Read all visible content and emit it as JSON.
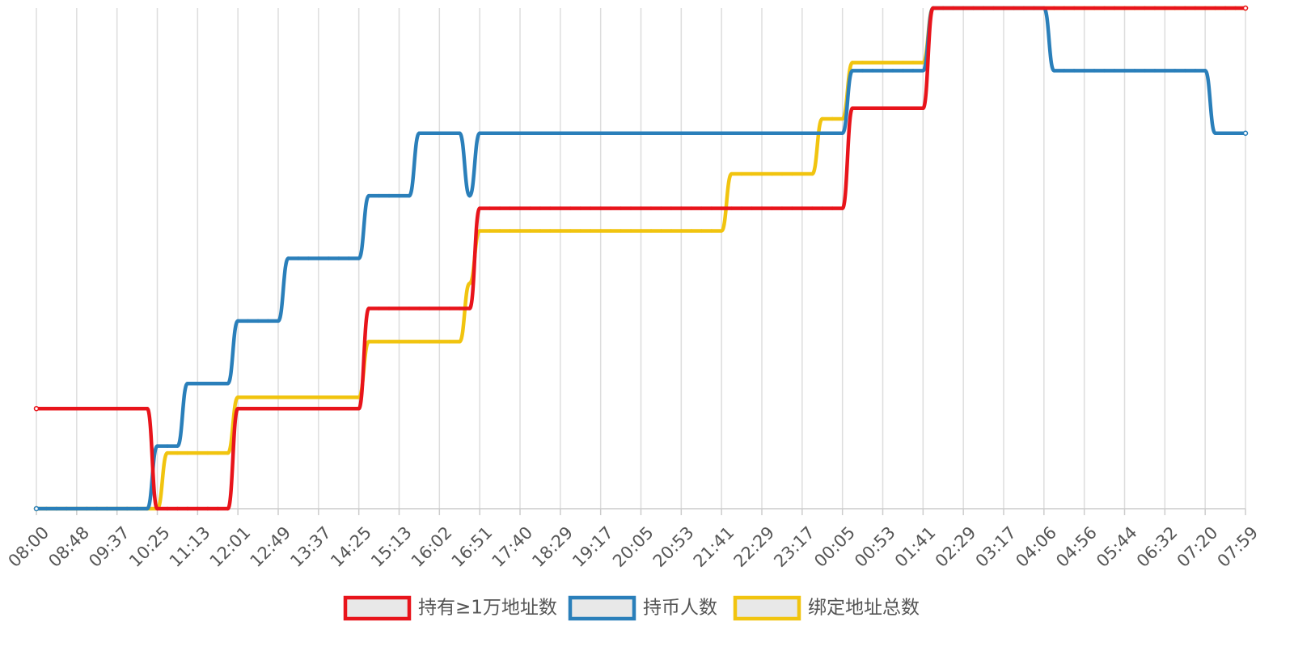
{
  "chart_data": {
    "type": "line",
    "categories": [
      "08:00",
      null,
      null,
      null,
      "08:48",
      null,
      null,
      null,
      "09:37",
      null,
      null,
      null,
      "10:25",
      null,
      null,
      null,
      "11:13",
      null,
      null,
      null,
      "12:01",
      null,
      null,
      null,
      "12:49",
      null,
      null,
      null,
      "13:37",
      null,
      null,
      null,
      "14:25",
      null,
      null,
      null,
      "15:13",
      null,
      null,
      null,
      "16:02",
      null,
      null,
      null,
      "16:51",
      null,
      null,
      null,
      "17:40",
      null,
      null,
      null,
      "18:29",
      null,
      null,
      null,
      "19:17",
      null,
      null,
      null,
      "20:05",
      null,
      null,
      null,
      "20:53",
      null,
      null,
      null,
      "21:41",
      null,
      null,
      null,
      "22:29",
      null,
      null,
      null,
      "23:17",
      null,
      null,
      null,
      "00:05",
      null,
      null,
      null,
      "00:53",
      null,
      null,
      null,
      "01:41",
      null,
      null,
      null,
      "02:29",
      null,
      null,
      null,
      "03:17",
      null,
      null,
      null,
      "04:06",
      null,
      null,
      null,
      "04:56",
      null,
      null,
      null,
      "05:44",
      null,
      null,
      null,
      "06:32",
      null,
      null,
      null,
      "07:20",
      null,
      null,
      null,
      "07:59"
    ],
    "ylim": [
      0,
      8
    ],
    "grid": true,
    "legend": "bottom",
    "series": [
      {
        "name": "持有≥1万地址数",
        "color": "#e8141b",
        "values": [
          1.6,
          1.6,
          1.6,
          1.6,
          1.6,
          1.6,
          1.6,
          1.6,
          1.6,
          1.6,
          1.6,
          1.6,
          0,
          0,
          0,
          0,
          0,
          0,
          0,
          0,
          1.6,
          1.6,
          1.6,
          1.6,
          1.6,
          1.6,
          1.6,
          1.6,
          1.6,
          1.6,
          1.6,
          1.6,
          1.6,
          3.2,
          3.2,
          3.2,
          3.2,
          3.2,
          3.2,
          3.2,
          3.2,
          3.2,
          3.2,
          3.2,
          4.8,
          4.8,
          4.8,
          4.8,
          4.8,
          4.8,
          4.8,
          4.8,
          4.8,
          4.8,
          4.8,
          4.8,
          4.8,
          4.8,
          4.8,
          4.8,
          4.8,
          4.8,
          4.8,
          4.8,
          4.8,
          4.8,
          4.8,
          4.8,
          4.8,
          4.8,
          4.8,
          4.8,
          4.8,
          4.8,
          4.8,
          4.8,
          4.8,
          4.8,
          4.8,
          4.8,
          4.8,
          6.4,
          6.4,
          6.4,
          6.4,
          6.4,
          6.4,
          6.4,
          6.4,
          8,
          8,
          8,
          8,
          8,
          8,
          8,
          8,
          8,
          8,
          8,
          8,
          8,
          8,
          8,
          8,
          8,
          8,
          8,
          8,
          8,
          8,
          8,
          8,
          8,
          8,
          8,
          8,
          8,
          8,
          8,
          8
        ]
      },
      {
        "name": "持币人数",
        "color": "#2a7fba",
        "values": [
          0,
          0,
          0,
          0,
          0,
          0,
          0,
          0,
          0,
          0,
          0,
          0,
          1,
          1,
          1,
          2,
          2,
          2,
          2,
          2,
          3,
          3,
          3,
          3,
          3,
          4,
          4,
          4,
          4,
          4,
          4,
          4,
          4,
          5,
          5,
          5,
          5,
          5,
          6,
          6,
          6,
          6,
          6,
          5,
          6,
          6,
          6,
          6,
          6,
          6,
          6,
          6,
          6,
          6,
          6,
          6,
          6,
          6,
          6,
          6,
          6,
          6,
          6,
          6,
          6,
          6,
          6,
          6,
          6,
          6,
          6,
          6,
          6,
          6,
          6,
          6,
          6,
          6,
          6,
          6,
          6,
          7,
          7,
          7,
          7,
          7,
          7,
          7,
          7,
          8,
          8,
          8,
          8,
          8,
          8,
          8,
          8,
          8,
          8,
          8,
          8,
          7,
          7,
          7,
          7,
          7,
          7,
          7,
          7,
          7,
          7,
          7,
          7,
          7,
          7,
          7,
          7,
          6,
          6,
          6,
          6
        ]
      },
      {
        "name": "绑定地址总数",
        "color": "#f1c40f",
        "values": [
          0,
          0,
          0,
          0,
          0,
          0,
          0,
          0,
          0,
          0,
          0,
          0,
          0,
          0.89,
          0.89,
          0.89,
          0.89,
          0.89,
          0.89,
          0.89,
          1.78,
          1.78,
          1.78,
          1.78,
          1.78,
          1.78,
          1.78,
          1.78,
          1.78,
          1.78,
          1.78,
          1.78,
          1.78,
          2.67,
          2.67,
          2.67,
          2.67,
          2.67,
          2.67,
          2.67,
          2.67,
          2.67,
          2.67,
          3.6,
          4.44,
          4.44,
          4.44,
          4.44,
          4.44,
          4.44,
          4.44,
          4.44,
          4.44,
          4.44,
          4.44,
          4.44,
          4.44,
          4.44,
          4.44,
          4.44,
          4.44,
          4.44,
          4.44,
          4.44,
          4.44,
          4.44,
          4.44,
          4.44,
          4.44,
          5.35,
          5.35,
          5.35,
          5.35,
          5.35,
          5.35,
          5.35,
          5.35,
          5.35,
          6.23,
          6.23,
          6.23,
          7.13,
          7.13,
          7.13,
          7.13,
          7.13,
          7.13,
          7.13,
          7.13,
          8,
          8,
          8,
          8,
          8,
          8,
          8,
          8,
          8,
          8,
          8,
          8,
          8,
          8,
          8,
          8,
          8,
          8,
          8,
          8,
          8,
          8,
          8,
          8,
          8,
          8,
          8,
          8,
          8,
          8,
          8,
          8
        ]
      }
    ]
  }
}
